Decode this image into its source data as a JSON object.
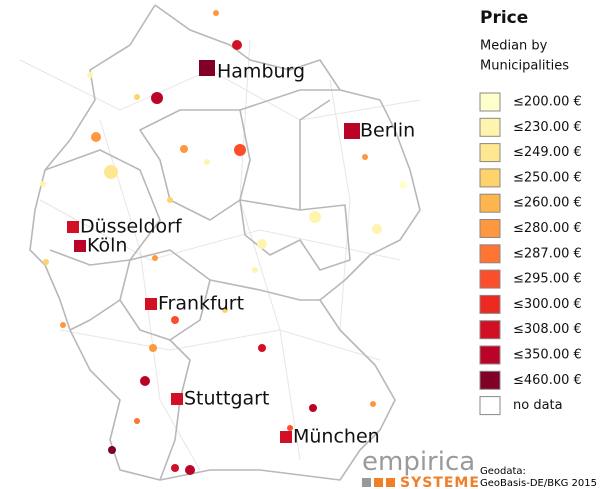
{
  "legend": {
    "title": "Price",
    "subtitle": [
      "Median by",
      "Municipalities"
    ],
    "items": [
      {
        "label": "≤200.00 €",
        "color": "#ffffcc"
      },
      {
        "label": "≤230.00 €",
        "color": "#fff4ad"
      },
      {
        "label": "≤249.00 €",
        "color": "#ffe690"
      },
      {
        "label": "≤250.00 €",
        "color": "#fed36c"
      },
      {
        "label": "≤260.00 €",
        "color": "#feb54e"
      },
      {
        "label": "≤280.00 €",
        "color": "#fd9840"
      },
      {
        "label": "≤287.00 €",
        "color": "#fd7433"
      },
      {
        "label": "≤295.00 €",
        "color": "#fb4e2b"
      },
      {
        "label": "≤300.00 €",
        "color": "#ec2a22"
      },
      {
        "label": "≤308.00 €",
        "color": "#d30f26"
      },
      {
        "label": "≤350.00 €",
        "color": "#bb0328"
      },
      {
        "label": "≤460.00 €",
        "color": "#800026"
      },
      {
        "label": "no data",
        "color": "#ffffff"
      }
    ]
  },
  "cities": [
    "Hamburg",
    "Berlin",
    "Düsseldorf",
    "Köln",
    "Frankfurt",
    "Stuttgart",
    "München"
  ],
  "logo": {
    "name": "empirica",
    "tagline": "SYSTEME"
  },
  "attribution": [
    "Geodata:",
    "GeoBasis-DE/BKG 2015 &"
  ]
}
